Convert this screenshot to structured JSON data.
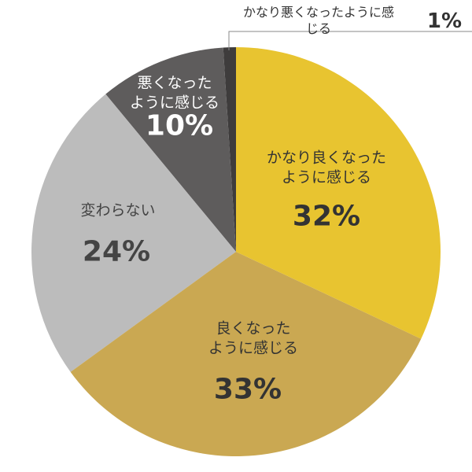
{
  "chart_data": {
    "type": "pie",
    "categories": [
      "かなり良くなった\nように感じる",
      "良くなった\nように感じる",
      "変わらない",
      "悪くなった\nように感じる",
      "かなり悪くなったように感じる"
    ],
    "values": [
      32,
      33,
      24,
      10,
      1
    ],
    "value_labels": [
      "32%",
      "33%",
      "24%",
      "10%",
      "1%"
    ],
    "colors": [
      "#e8c430",
      "#caa852",
      "#bcbcbc",
      "#5e5c5c",
      "#3e3c3c"
    ]
  }
}
